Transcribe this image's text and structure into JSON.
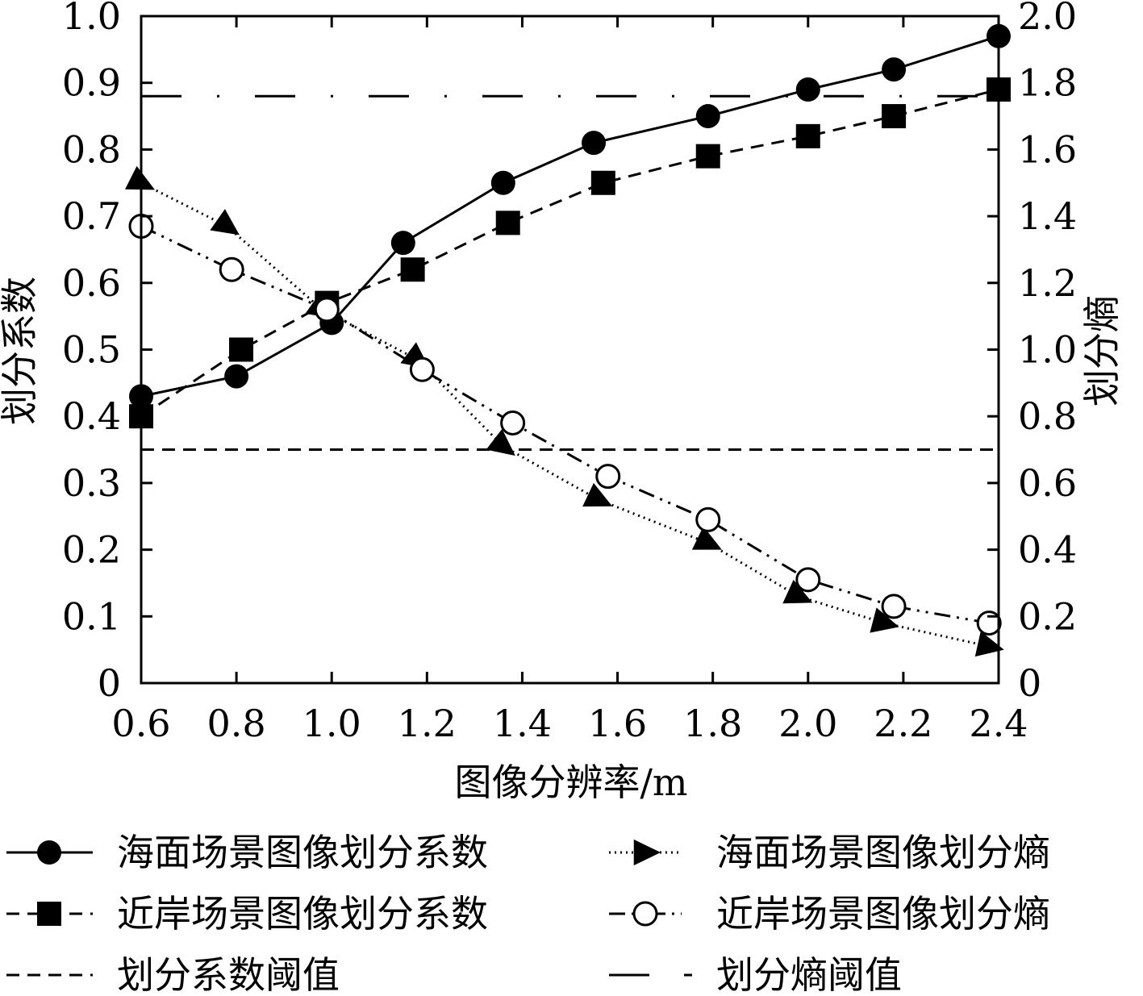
{
  "chart_data": {
    "type": "line",
    "xlabel": "图像分辨率/m",
    "ylabel_left": "划分系数",
    "ylabel_right": "划分熵",
    "xlim": [
      0.6,
      2.4
    ],
    "ylim_left": [
      0,
      1.0
    ],
    "ylim_right": [
      0,
      2.0
    ],
    "x_ticks": [
      "0.6",
      "0.8",
      "1.0",
      "1.2",
      "1.4",
      "1.6",
      "1.8",
      "2.0",
      "2.2",
      "2.4"
    ],
    "y_left_ticks": [
      "0",
      "0.1",
      "0.2",
      "0.3",
      "0.4",
      "0.5",
      "0.6",
      "0.7",
      "0.8",
      "0.9",
      "1.0"
    ],
    "y_right_ticks": [
      "0",
      "0.2",
      "0.4",
      "0.6",
      "0.8",
      "1.0",
      "1.2",
      "1.4",
      "1.6",
      "1.8",
      "2.0"
    ],
    "grid": false,
    "legend_position": "bottom",
    "series": [
      {
        "name": "海面场景图像划分系数",
        "axis": "left",
        "marker": "filled-circle",
        "line": "solid",
        "x": [
          0.6,
          0.8,
          1.0,
          1.15,
          1.36,
          1.55,
          1.79,
          2.0,
          2.18,
          2.4
        ],
        "y": [
          0.43,
          0.46,
          0.54,
          0.66,
          0.75,
          0.81,
          0.85,
          0.89,
          0.92,
          0.97
        ]
      },
      {
        "name": "近岸场景图像划分系数",
        "axis": "left",
        "marker": "filled-square",
        "line": "dashed",
        "x": [
          0.6,
          0.81,
          0.99,
          1.17,
          1.37,
          1.57,
          1.79,
          2.0,
          2.18,
          2.4
        ],
        "y": [
          0.4,
          0.5,
          0.57,
          0.62,
          0.69,
          0.75,
          0.79,
          0.82,
          0.85,
          0.89
        ]
      },
      {
        "name": "海面场景图像划分熵",
        "axis": "right",
        "marker": "filled-triangle",
        "line": "dotted",
        "x": [
          0.6,
          0.78,
          0.98,
          1.18,
          1.36,
          1.56,
          1.79,
          1.98,
          2.16,
          2.38
        ],
        "y": [
          1.5,
          1.37,
          1.12,
          0.97,
          0.71,
          0.55,
          0.42,
          0.26,
          0.18,
          0.11
        ]
      },
      {
        "name": "近岸场景图像划分熵",
        "axis": "right",
        "marker": "open-circle",
        "line": "dash-dot",
        "x": [
          0.6,
          0.79,
          0.99,
          1.19,
          1.38,
          1.58,
          1.79,
          2.0,
          2.18,
          2.38
        ],
        "y": [
          1.37,
          1.24,
          1.12,
          0.94,
          0.78,
          0.62,
          0.49,
          0.31,
          0.23,
          0.18
        ]
      }
    ],
    "thresholds": [
      {
        "name": "划分系数阈值",
        "axis": "left",
        "y": 0.35,
        "line": "dashed"
      },
      {
        "name": "划分熵阈值",
        "axis": "right",
        "y": 1.76,
        "line": "long-dash-dot"
      }
    ]
  },
  "colors": {
    "ink": "#000000",
    "background": "#ffffff"
  }
}
